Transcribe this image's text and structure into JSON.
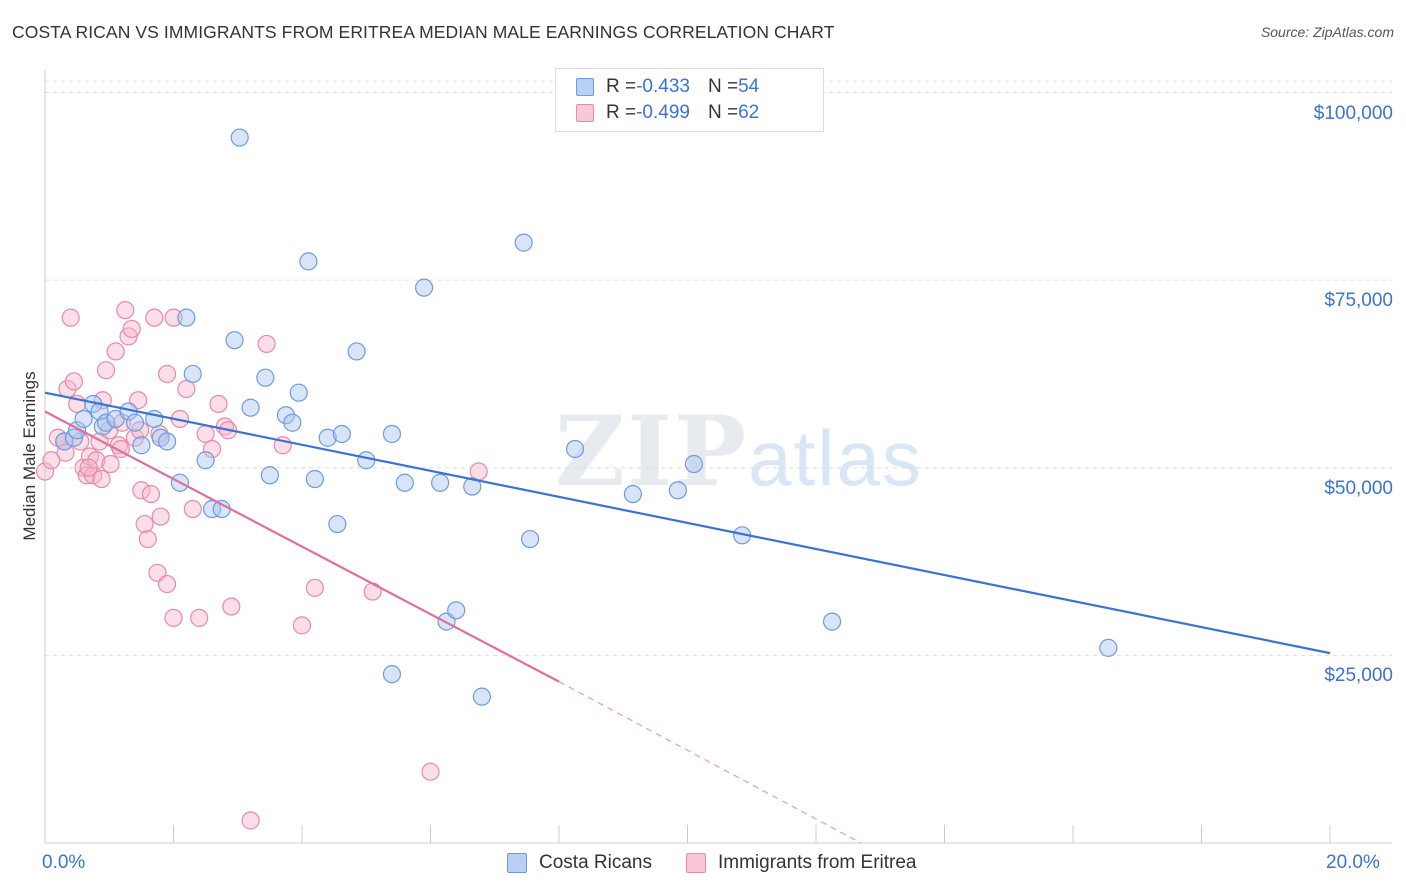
{
  "title": "COSTA RICAN VS IMMIGRANTS FROM ERITREA MEDIAN MALE EARNINGS CORRELATION CHART",
  "source": "Source: ZipAtlas.com",
  "watermark": {
    "zip": "ZIP",
    "atlas": "atlas"
  },
  "legend_top": {
    "rows": [
      {
        "r_label": "R = ",
        "r_value": "-0.433",
        "n_label": "N = ",
        "n_value": "54"
      },
      {
        "r_label": "R = ",
        "r_value": "-0.499",
        "n_label": "N = ",
        "n_value": "62"
      }
    ]
  },
  "chart_data": {
    "type": "scatter",
    "title": "COSTA RICAN VS IMMIGRANTS FROM ERITREA MEDIAN MALE EARNINGS CORRELATION CHART",
    "xlabel": "",
    "ylabel": "Median Male Earnings",
    "xlim": [
      0,
      0.2
    ],
    "ylim": [
      0,
      103000
    ],
    "x_tick_labels": [
      "0.0%",
      "20.0%"
    ],
    "y_ticks": [
      25000,
      50000,
      75000,
      100000
    ],
    "y_tick_labels": [
      "$25,000",
      "$50,000",
      "$75,000",
      "$100,000"
    ],
    "grid": true,
    "legend_position": "bottom-center",
    "colors": {
      "blue": "#3b73d1",
      "pink": "#e06f9c"
    },
    "series": [
      {
        "name": "Costa Ricans",
        "color": "#a9c6f0",
        "stroke": "#6f9ae0",
        "trend": {
          "x0": 0.0,
          "y0": 60000,
          "x1": 0.2,
          "y1": 25300
        },
        "points": [
          [
            0.003,
            53500
          ],
          [
            0.0045,
            54000
          ],
          [
            0.005,
            55000
          ],
          [
            0.006,
            56500
          ],
          [
            0.0075,
            58500
          ],
          [
            0.0085,
            57500
          ],
          [
            0.009,
            55500
          ],
          [
            0.0095,
            56000
          ],
          [
            0.011,
            56500
          ],
          [
            0.013,
            57500
          ],
          [
            0.014,
            56000
          ],
          [
            0.015,
            53000
          ],
          [
            0.017,
            56500
          ],
          [
            0.018,
            54000
          ],
          [
            0.019,
            53500
          ],
          [
            0.021,
            48000
          ],
          [
            0.022,
            70000
          ],
          [
            0.023,
            62500
          ],
          [
            0.025,
            51000
          ],
          [
            0.026,
            44500
          ],
          [
            0.0275,
            44500
          ],
          [
            0.0295,
            67000
          ],
          [
            0.0303,
            94000
          ],
          [
            0.032,
            58000
          ],
          [
            0.0343,
            62000
          ],
          [
            0.035,
            49000
          ],
          [
            0.0375,
            57000
          ],
          [
            0.0385,
            56000
          ],
          [
            0.0395,
            60000
          ],
          [
            0.041,
            77500
          ],
          [
            0.042,
            48500
          ],
          [
            0.044,
            54000
          ],
          [
            0.0455,
            42500
          ],
          [
            0.0462,
            54500
          ],
          [
            0.0485,
            65500
          ],
          [
            0.05,
            51000
          ],
          [
            0.054,
            54500
          ],
          [
            0.056,
            48000
          ],
          [
            0.054,
            22500
          ],
          [
            0.059,
            74000
          ],
          [
            0.0615,
            48000
          ],
          [
            0.0625,
            29500
          ],
          [
            0.064,
            31000
          ],
          [
            0.0665,
            47500
          ],
          [
            0.068,
            19500
          ],
          [
            0.0745,
            80000
          ],
          [
            0.0755,
            40500
          ],
          [
            0.0825,
            52500
          ],
          [
            0.0915,
            46500
          ],
          [
            0.0985,
            47000
          ],
          [
            0.101,
            50500
          ],
          [
            0.1085,
            41000
          ],
          [
            0.1225,
            29500
          ],
          [
            0.1655,
            26000
          ]
        ]
      },
      {
        "name": "Immigrants from Eritrea",
        "color": "#f6b6ca",
        "stroke": "#e88aaa",
        "trend": {
          "x0": 0.0,
          "y0": 57500,
          "x1": 0.08,
          "y1": 21500
        },
        "trend_dashed": {
          "x0": 0.08,
          "y0": 21500,
          "x1": 0.127,
          "y1": 0
        },
        "points": [
          [
            0.0,
            49500
          ],
          [
            0.001,
            51000
          ],
          [
            0.002,
            54000
          ],
          [
            0.003,
            53500
          ],
          [
            0.0035,
            60500
          ],
          [
            0.004,
            70000
          ],
          [
            0.0045,
            61500
          ],
          [
            0.005,
            58500
          ],
          [
            0.0055,
            53500
          ],
          [
            0.006,
            50000
          ],
          [
            0.0065,
            49000
          ],
          [
            0.007,
            51500
          ],
          [
            0.0075,
            49000
          ],
          [
            0.008,
            51000
          ],
          [
            0.0085,
            53500
          ],
          [
            0.009,
            59000
          ],
          [
            0.0095,
            63000
          ],
          [
            0.01,
            55000
          ],
          [
            0.0102,
            50500
          ],
          [
            0.011,
            65500
          ],
          [
            0.0115,
            53000
          ],
          [
            0.012,
            56000
          ],
          [
            0.0125,
            71000
          ],
          [
            0.013,
            67500
          ],
          [
            0.0135,
            68500
          ],
          [
            0.014,
            54000
          ],
          [
            0.0145,
            59000
          ],
          [
            0.015,
            47000
          ],
          [
            0.0155,
            42500
          ],
          [
            0.016,
            40500
          ],
          [
            0.0165,
            46500
          ],
          [
            0.017,
            70000
          ],
          [
            0.0175,
            36000
          ],
          [
            0.018,
            43500
          ],
          [
            0.019,
            62500
          ],
          [
            0.02,
            70000
          ],
          [
            0.021,
            56500
          ],
          [
            0.019,
            34500
          ],
          [
            0.02,
            30000
          ],
          [
            0.022,
            60500
          ],
          [
            0.023,
            44500
          ],
          [
            0.024,
            30000
          ],
          [
            0.025,
            54500
          ],
          [
            0.026,
            52500
          ],
          [
            0.027,
            58500
          ],
          [
            0.028,
            55500
          ],
          [
            0.0285,
            55000
          ],
          [
            0.029,
            31500
          ],
          [
            0.032,
            3000
          ],
          [
            0.0345,
            66500
          ],
          [
            0.037,
            53000
          ],
          [
            0.04,
            29000
          ],
          [
            0.042,
            34000
          ],
          [
            0.051,
            33500
          ],
          [
            0.06,
            9500
          ],
          [
            0.0675,
            49500
          ],
          [
            0.0032,
            52000
          ],
          [
            0.0068,
            50000
          ],
          [
            0.0088,
            48500
          ],
          [
            0.0118,
            52500
          ],
          [
            0.0148,
            55000
          ],
          [
            0.0178,
            54500
          ]
        ]
      }
    ]
  }
}
